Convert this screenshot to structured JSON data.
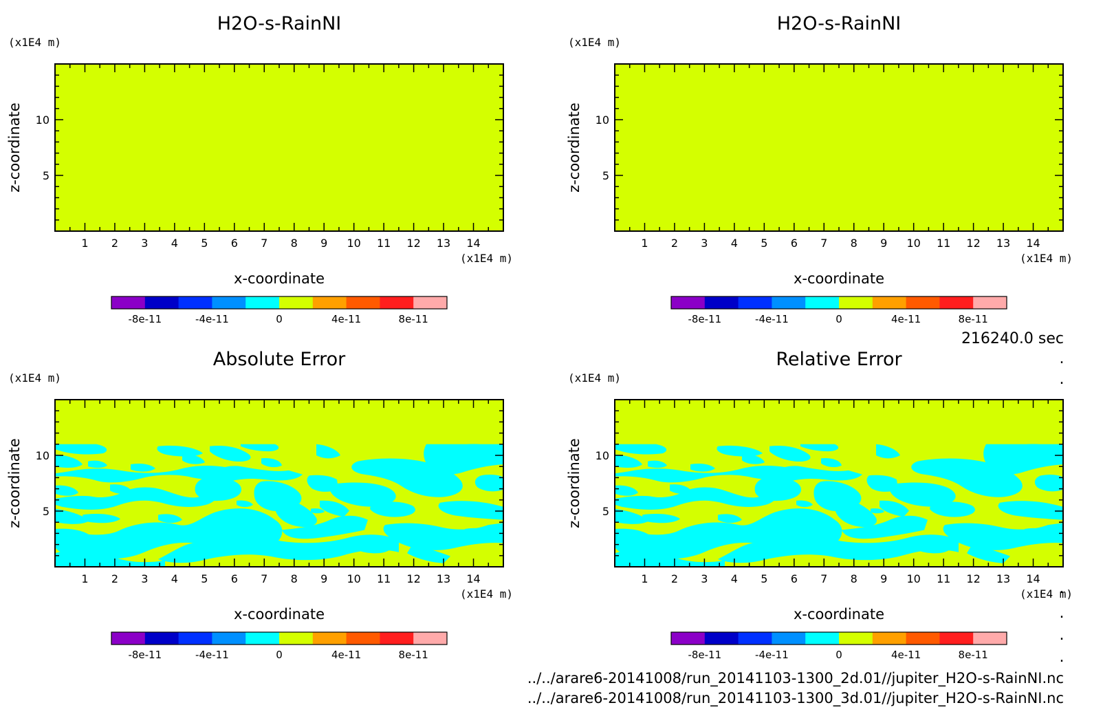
{
  "time_label": "216240.0 sec",
  "files": [
    "../../arare6-20141008/run_20141103-1300_2d.01//jupiter_H2O-s-RainNI.nc",
    "../../arare6-20141008/run_20141103-1300_3d.01//jupiter_H2O-s-RainNI.nc"
  ],
  "colors": {
    "background_field": "#d4ff00",
    "error_region": "#00ffff",
    "frame": "#000000"
  },
  "chart_data": [
    {
      "type": "heatmap",
      "title": "H2O-s-RainNI",
      "xlabel": "x-coordinate",
      "ylabel": "z-coordinate",
      "x_unit": "(x1E4 m)",
      "y_unit": "(x1E4 m)",
      "xlim": [
        0,
        15
      ],
      "ylim": [
        0,
        15
      ],
      "x_ticks": [
        "1",
        "2",
        "3",
        "4",
        "5",
        "6",
        "7",
        "8",
        "9",
        "10",
        "11",
        "12",
        "13",
        "14"
      ],
      "y_ticks": [
        "5",
        "10"
      ],
      "field": "uniform",
      "field_value": 0,
      "colorbar": {
        "colors": [
          "#8b00c7",
          "#0000c8",
          "#0030ff",
          "#0090ff",
          "#00ffff",
          "#d4ff00",
          "#ffa000",
          "#ff5a00",
          "#ff1e1e",
          "#ffaaaa"
        ],
        "tick_labels": [
          "-8e-11",
          "-4e-11",
          "0",
          "4e-11",
          "8e-11"
        ],
        "tick_values": [
          -8e-11,
          -4e-11,
          0,
          4e-11,
          8e-11
        ],
        "range": [
          -1e-10,
          1e-10
        ]
      }
    },
    {
      "type": "heatmap",
      "title": "H2O-s-RainNI",
      "xlabel": "x-coordinate",
      "ylabel": "z-coordinate",
      "x_unit": "(x1E4 m)",
      "y_unit": "(x1E4 m)",
      "xlim": [
        0,
        15
      ],
      "ylim": [
        0,
        15
      ],
      "x_ticks": [
        "1",
        "2",
        "3",
        "4",
        "5",
        "6",
        "7",
        "8",
        "9",
        "10",
        "11",
        "12",
        "13",
        "14"
      ],
      "y_ticks": [
        "5",
        "10"
      ],
      "field": "uniform",
      "field_value": 0,
      "colorbar": {
        "colors": [
          "#8b00c7",
          "#0000c8",
          "#0030ff",
          "#0090ff",
          "#00ffff",
          "#d4ff00",
          "#ffa000",
          "#ff5a00",
          "#ff1e1e",
          "#ffaaaa"
        ],
        "tick_labels": [
          "-8e-11",
          "-4e-11",
          "0",
          "4e-11",
          "8e-11"
        ],
        "tick_values": [
          -8e-11,
          -4e-11,
          0,
          4e-11,
          8e-11
        ],
        "range": [
          -1e-10,
          1e-10
        ]
      }
    },
    {
      "type": "heatmap",
      "title": "Absolute Error",
      "xlabel": "x-coordinate",
      "ylabel": "z-coordinate",
      "x_unit": "(x1E4 m)",
      "y_unit": "(x1E4 m)",
      "xlim": [
        0,
        15
      ],
      "ylim": [
        0,
        15
      ],
      "x_ticks": [
        "1",
        "2",
        "3",
        "4",
        "5",
        "6",
        "7",
        "8",
        "9",
        "10",
        "11",
        "12",
        "13",
        "14"
      ],
      "y_ticks": [
        "5",
        "10"
      ],
      "field": "patchy",
      "patch_top_z": 11,
      "patch_value_bin": "-1e-11 to 0",
      "colorbar": {
        "colors": [
          "#8b00c7",
          "#0000c8",
          "#0030ff",
          "#0090ff",
          "#00ffff",
          "#d4ff00",
          "#ffa000",
          "#ff5a00",
          "#ff1e1e",
          "#ffaaaa"
        ],
        "tick_labels": [
          "-8e-11",
          "-4e-11",
          "0",
          "4e-11",
          "8e-11"
        ],
        "tick_values": [
          -8e-11,
          -4e-11,
          0,
          4e-11,
          8e-11
        ],
        "range": [
          -1e-10,
          1e-10
        ]
      }
    },
    {
      "type": "heatmap",
      "title": "Relative Error",
      "xlabel": "x-coordinate",
      "ylabel": "z-coordinate",
      "x_unit": "(x1E4 m)",
      "y_unit": "(x1E4 m)",
      "xlim": [
        0,
        15
      ],
      "ylim": [
        0,
        15
      ],
      "x_ticks": [
        "1",
        "2",
        "3",
        "4",
        "5",
        "6",
        "7",
        "8",
        "9",
        "10",
        "11",
        "12",
        "13",
        "14"
      ],
      "y_ticks": [
        "5",
        "10"
      ],
      "field": "patchy",
      "patch_top_z": 11,
      "patch_value_bin": "-1e-11 to 0",
      "colorbar": {
        "colors": [
          "#8b00c7",
          "#0000c8",
          "#0030ff",
          "#0090ff",
          "#00ffff",
          "#d4ff00",
          "#ffa000",
          "#ff5a00",
          "#ff1e1e",
          "#ffaaaa"
        ],
        "tick_labels": [
          "-8e-11",
          "-4e-11",
          "0",
          "4e-11",
          "8e-11"
        ],
        "tick_values": [
          -8e-11,
          -4e-11,
          0,
          4e-11,
          8e-11
        ],
        "range": [
          -1e-10,
          1e-10
        ]
      }
    }
  ]
}
